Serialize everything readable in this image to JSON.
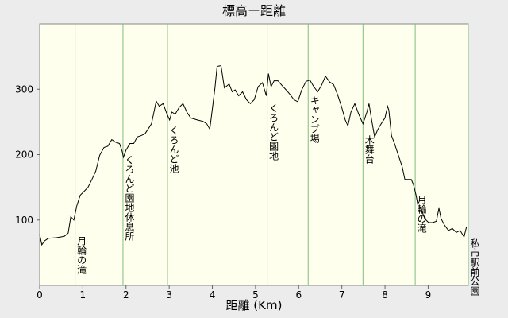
{
  "chart_data": {
    "type": "line",
    "title": "標高ー距離",
    "x_label": "距離 (Km)",
    "xlim": [
      0,
      9.93
    ],
    "xticks": [
      0,
      1,
      2,
      3,
      4,
      5,
      6,
      7,
      8,
      9
    ],
    "ylim": [
      0,
      400
    ],
    "yticks": [
      100,
      200,
      300
    ],
    "series": [
      {
        "color": "#000000",
        "x": [
          0,
          0.05,
          0.11,
          0.2,
          0.39,
          0.57,
          0.66,
          0.72,
          0.79,
          0.86,
          0.94,
          1.03,
          1.12,
          1.21,
          1.3,
          1.39,
          1.49,
          1.58,
          1.67,
          1.76,
          1.85,
          1.91,
          1.94,
          2.0,
          2.09,
          2.18,
          2.26,
          2.35,
          2.44,
          2.53,
          2.59,
          2.64,
          2.7,
          2.77,
          2.86,
          2.95,
          3.01,
          3.06,
          3.14,
          3.23,
          3.32,
          3.41,
          3.5,
          3.65,
          3.78,
          3.87,
          3.94,
          3.98,
          4.06,
          4.11,
          4.2,
          4.28,
          4.39,
          4.46,
          4.53,
          4.61,
          4.7,
          4.79,
          4.88,
          4.97,
          5.06,
          5.16,
          5.25,
          5.3,
          5.36,
          5.43,
          5.52,
          5.61,
          5.71,
          5.8,
          5.89,
          5.98,
          6.07,
          6.17,
          6.26,
          6.35,
          6.44,
          6.53,
          6.62,
          6.72,
          6.81,
          6.9,
          6.99,
          7.08,
          7.14,
          7.21,
          7.3,
          7.39,
          7.49,
          7.58,
          7.63,
          7.69,
          7.76,
          7.83,
          7.91,
          8.0,
          8.06,
          8.09,
          8.15,
          8.22,
          8.31,
          8.4,
          8.46,
          8.51,
          8.61,
          8.66,
          8.72,
          8.77,
          8.83,
          8.92,
          9.01,
          9.1,
          9.19,
          9.25,
          9.3,
          9.38,
          9.47,
          9.56,
          9.65,
          9.74,
          9.83,
          9.89
        ],
        "values": [
          78,
          62,
          68,
          72,
          73,
          75,
          80,
          105,
          100,
          122,
          138,
          144,
          150,
          162,
          175,
          199,
          211,
          213,
          223,
          219,
          217,
          205,
          196,
          207,
          217,
          217,
          227,
          229,
          232,
          241,
          247,
          263,
          282,
          274,
          278,
          262,
          253,
          265,
          262,
          272,
          278,
          265,
          256,
          253,
          251,
          247,
          239,
          259,
          302,
          335,
          336,
          302,
          308,
          296,
          299,
          290,
          296,
          284,
          278,
          284,
          304,
          310,
          290,
          324,
          304,
          313,
          313,
          306,
          299,
          292,
          284,
          281,
          299,
          312,
          314,
          304,
          296,
          306,
          320,
          311,
          307,
          292,
          274,
          253,
          244,
          265,
          278,
          262,
          247,
          265,
          278,
          253,
          227,
          238,
          247,
          256,
          274,
          268,
          229,
          217,
          199,
          181,
          162,
          162,
          162,
          154,
          138,
          120,
          118,
          102,
          96,
          96,
          98,
          118,
          102,
          92,
          84,
          87,
          81,
          84,
          74,
          90
        ]
      }
    ],
    "landmarks": [
      {
        "label": "月輪の滝",
        "x": 0.82
      },
      {
        "label": "くろんど園地休息所",
        "x": 1.93
      },
      {
        "label": "くろんど池",
        "x": 2.96
      },
      {
        "label": "くろんど園地",
        "x": 5.27
      },
      {
        "label": "キャンプ場",
        "x": 6.22
      },
      {
        "label": "木舞台",
        "x": 7.49
      },
      {
        "label": "月輪の滝",
        "x": 8.7
      },
      {
        "label": "私市駅前公園",
        "x": 9.93
      }
    ]
  }
}
